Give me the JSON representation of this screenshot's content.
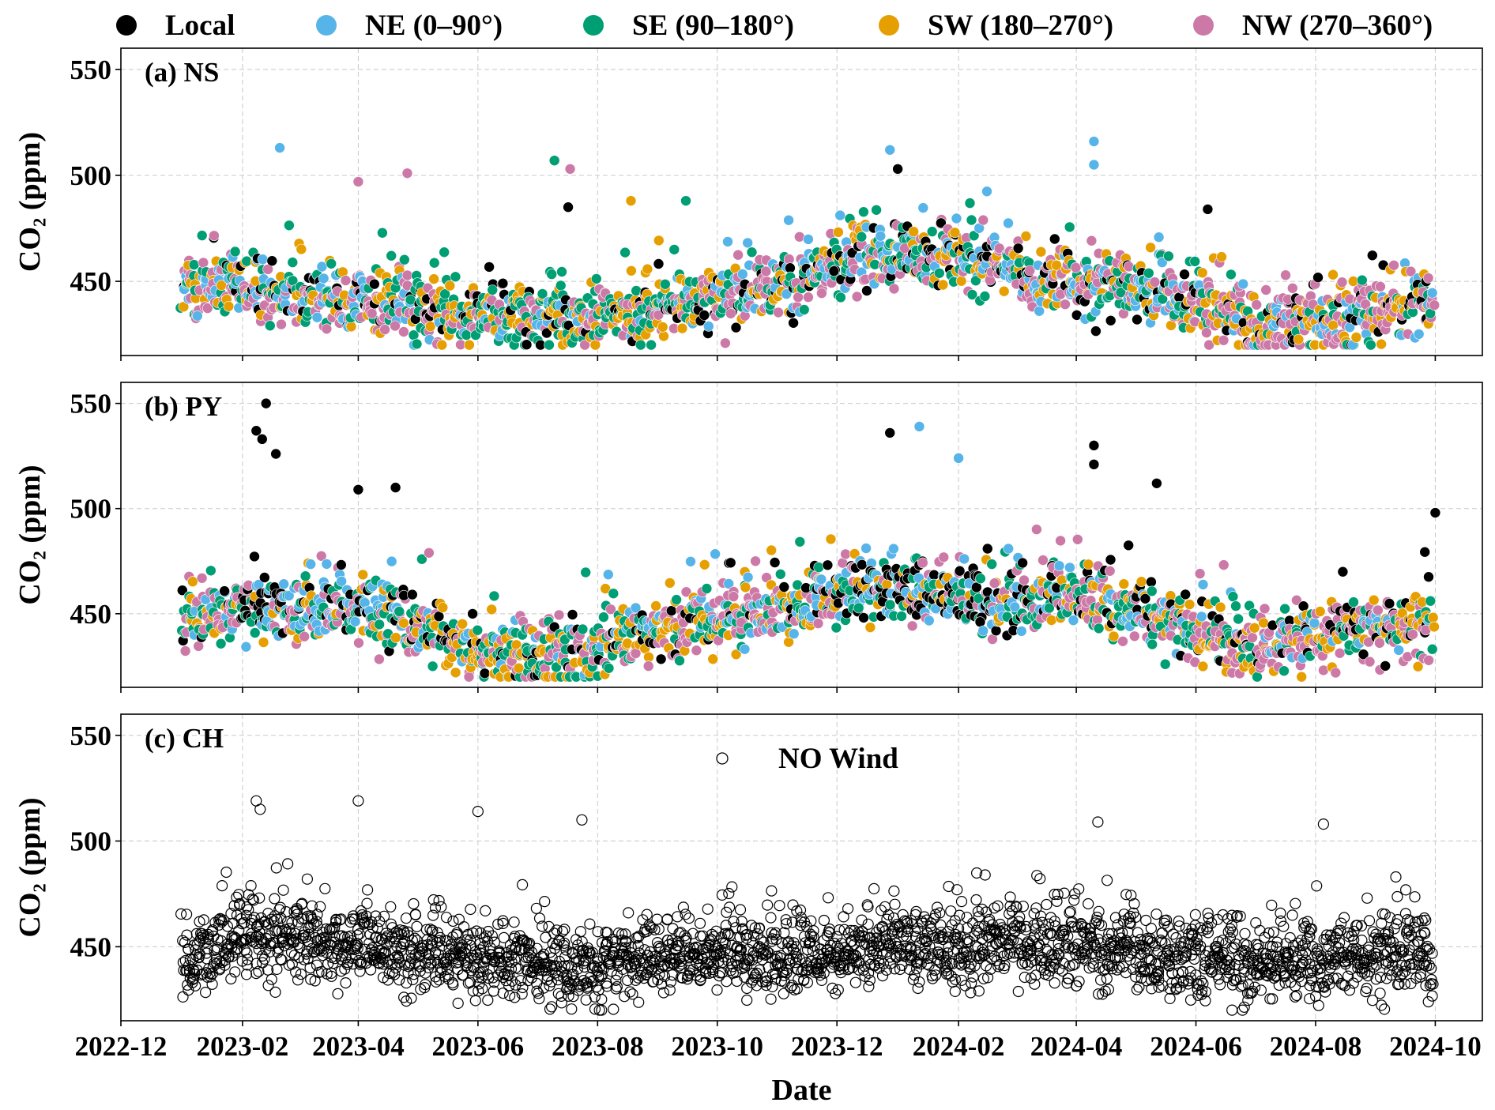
{
  "colors": {
    "local": "#000000",
    "ne": "#56B4E9",
    "se": "#009E73",
    "sw": "#E69F00",
    "nw": "#CC79A7",
    "grid": "#c8c8c8"
  },
  "legend": [
    {
      "key": "local",
      "label": "Local"
    },
    {
      "key": "ne",
      "label": "NE (0–90°)"
    },
    {
      "key": "se",
      "label": "SE (90–180°)"
    },
    {
      "key": "sw",
      "label": "SW (180–270°)"
    },
    {
      "key": "nw",
      "label": "NW (270–360°)"
    }
  ],
  "chart_data": {
    "type": "scatter",
    "shared_x": {
      "label": "Date",
      "range": [
        "2022-12-01",
        "2024-10-25"
      ],
      "ticks": [
        "2022-12",
        "2023-02",
        "2023-04",
        "2023-06",
        "2023-08",
        "2023-10",
        "2023-12",
        "2024-02",
        "2024-04",
        "2024-06",
        "2024-08",
        "2024-10"
      ],
      "data_start": "2023-01-01",
      "data_end": "2024-09-30"
    },
    "panels": [
      {
        "id": "ns",
        "title": "(a) NS",
        "ylabel": "CO₂ (ppm)",
        "ylim": [
          415,
          560
        ],
        "yticks": [
          450,
          500,
          550
        ],
        "grid": true,
        "series": [
          "local",
          "ne",
          "se",
          "sw",
          "nw"
        ],
        "monthly_base_ppm": [
          448,
          447,
          444,
          441,
          437,
          433,
          433,
          432,
          437,
          443,
          447,
          460,
          462,
          460,
          455,
          450,
          446,
          441,
          431,
          430,
          438
        ],
        "outliers": [
          {
            "date": "2023-02-20",
            "y": 513,
            "series": "ne"
          },
          {
            "date": "2023-04-01",
            "y": 497,
            "series": "nw"
          },
          {
            "date": "2023-04-26",
            "y": 501,
            "series": "nw"
          },
          {
            "date": "2023-07-10",
            "y": 507,
            "series": "se"
          },
          {
            "date": "2023-07-18",
            "y": 503,
            "series": "nw"
          },
          {
            "date": "2023-07-17",
            "y": 485,
            "series": "local"
          },
          {
            "date": "2023-08-18",
            "y": 488,
            "series": "sw"
          },
          {
            "date": "2023-09-15",
            "y": 488,
            "series": "se"
          },
          {
            "date": "2023-12-28",
            "y": 512,
            "series": "ne"
          },
          {
            "date": "2024-01-01",
            "y": 503,
            "series": "local"
          },
          {
            "date": "2024-04-10",
            "y": 516,
            "series": "ne"
          },
          {
            "date": "2024-04-10",
            "y": 505,
            "series": "ne"
          },
          {
            "date": "2024-06-07",
            "y": 484,
            "series": "local"
          }
        ]
      },
      {
        "id": "py",
        "title": "(b) PY",
        "ylabel": "CO₂ (ppm)",
        "ylim": [
          415,
          560
        ],
        "yticks": [
          450,
          500,
          550
        ],
        "grid": true,
        "series": [
          "local",
          "ne",
          "se",
          "sw",
          "nw"
        ],
        "monthly_base_ppm": [
          443,
          452,
          453,
          453,
          445,
          432,
          430,
          433,
          440,
          448,
          452,
          460,
          464,
          458,
          455,
          456,
          453,
          441,
          434,
          440,
          445
        ],
        "outliers": [
          {
            "date": "2023-02-13",
            "y": 550,
            "series": "local"
          },
          {
            "date": "2023-02-08",
            "y": 537,
            "series": "local"
          },
          {
            "date": "2023-02-11",
            "y": 533,
            "series": "local"
          },
          {
            "date": "2023-02-18",
            "y": 526,
            "series": "local"
          },
          {
            "date": "2023-04-01",
            "y": 509,
            "series": "local"
          },
          {
            "date": "2023-04-20",
            "y": 510,
            "series": "local"
          },
          {
            "date": "2023-12-28",
            "y": 536,
            "series": "local"
          },
          {
            "date": "2024-01-12",
            "y": 539,
            "series": "ne"
          },
          {
            "date": "2024-02-01",
            "y": 524,
            "series": "ne"
          },
          {
            "date": "2024-04-10",
            "y": 530,
            "series": "local"
          },
          {
            "date": "2024-04-10",
            "y": 521,
            "series": "local"
          },
          {
            "date": "2024-05-12",
            "y": 512,
            "series": "local"
          },
          {
            "date": "2024-10-01",
            "y": 498,
            "series": "local"
          }
        ]
      },
      {
        "id": "ch",
        "title": "(c) CH",
        "ylabel": "CO₂ (ppm)",
        "ylim": [
          415,
          560
        ],
        "yticks": [
          450,
          500,
          550
        ],
        "grid": true,
        "annotation": "NO Wind",
        "series": [
          "nowind"
        ],
        "monthly_base_ppm": [
          441,
          455,
          452,
          450,
          446,
          443,
          442,
          440,
          444,
          448,
          445,
          447,
          450,
          449,
          452,
          452,
          447,
          444,
          442,
          443,
          446
        ],
        "outliers": [
          {
            "date": "2023-02-08",
            "y": 519,
            "series": "nowind"
          },
          {
            "date": "2023-02-10",
            "y": 515,
            "series": "nowind"
          },
          {
            "date": "2023-04-01",
            "y": 519,
            "series": "nowind"
          },
          {
            "date": "2023-06-01",
            "y": 514,
            "series": "nowind"
          },
          {
            "date": "2023-07-24",
            "y": 510,
            "series": "nowind"
          },
          {
            "date": "2024-04-12",
            "y": 509,
            "series": "nowind"
          },
          {
            "date": "2024-08-05",
            "y": 508,
            "series": "nowind"
          }
        ]
      }
    ]
  }
}
